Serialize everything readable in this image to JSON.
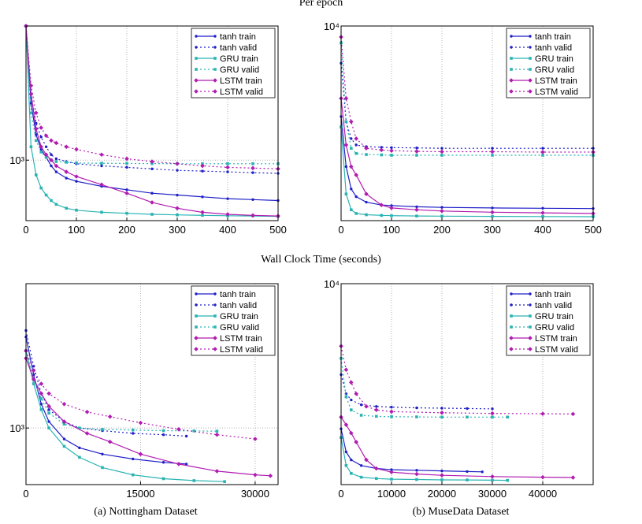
{
  "titles": {
    "per_epoch": "Per epoch",
    "wall_clock": "Wall Clock Time (seconds)",
    "caption_a": "(a) Nottingham Dataset",
    "caption_b": "(b) MuseData Dataset"
  },
  "colors": {
    "tanh": "#1f1fc8",
    "gru": "#2ab3b3",
    "lstm": "#b01cb0",
    "grid": "#b0b0b0"
  },
  "chart_data": [
    {
      "id": "nottingham-epoch",
      "type": "line",
      "title": "",
      "xlabel": "",
      "ylabel": "",
      "x_ticks": [
        0,
        100,
        200,
        300,
        400,
        500
      ],
      "x_tick_labels": [
        "0",
        "100",
        "200",
        "300",
        "400",
        "500"
      ],
      "y_scale": "log",
      "y_tick_labels": [
        "10³"
      ],
      "y_tick_values": [
        1000
      ],
      "xlim": [
        0,
        500
      ],
      "ylim": [
        650,
        2600
      ],
      "grid": true,
      "legend": "top-right",
      "series": [
        {
          "name": "tanh train",
          "family": "tanh",
          "style": "solid",
          "x": [
            0,
            10,
            20,
            30,
            40,
            50,
            60,
            80,
            100,
            150,
            200,
            250,
            300,
            350,
            400,
            450,
            500
          ],
          "y": [
            2600,
            1500,
            1200,
            1080,
            1020,
            960,
            920,
            880,
            860,
            830,
            810,
            790,
            780,
            770,
            760,
            755,
            750
          ]
        },
        {
          "name": "tanh valid",
          "family": "tanh",
          "style": "dotted",
          "x": [
            0,
            10,
            20,
            30,
            40,
            50,
            60,
            80,
            100,
            150,
            200,
            250,
            300,
            350,
            400,
            450,
            500
          ],
          "y": [
            2600,
            1600,
            1300,
            1180,
            1100,
            1040,
            1010,
            990,
            975,
            960,
            950,
            940,
            930,
            925,
            920,
            915,
            910
          ]
        },
        {
          "name": "GRU train",
          "family": "gru",
          "style": "solid",
          "x": [
            0,
            10,
            20,
            30,
            40,
            50,
            60,
            80,
            100,
            150,
            200,
            250,
            300,
            350,
            400,
            450,
            500
          ],
          "y": [
            2600,
            1100,
            900,
            820,
            780,
            750,
            730,
            710,
            700,
            690,
            685,
            680,
            677,
            675,
            673,
            672,
            670
          ]
        },
        {
          "name": "GRU valid",
          "family": "gru",
          "style": "dotted",
          "x": [
            0,
            10,
            20,
            30,
            40,
            50,
            60,
            80,
            100,
            150,
            200,
            250,
            300,
            350,
            400,
            450,
            500
          ],
          "y": [
            2600,
            1400,
            1150,
            1060,
            1020,
            1000,
            990,
            985,
            980,
            978,
            977,
            976,
            975,
            975,
            975,
            975,
            975
          ]
        },
        {
          "name": "LSTM train",
          "family": "lstm",
          "style": "solid",
          "x": [
            0,
            10,
            20,
            30,
            40,
            50,
            60,
            80,
            100,
            150,
            200,
            250,
            300,
            350,
            400,
            450,
            500
          ],
          "y": [
            2600,
            1600,
            1250,
            1100,
            1040,
            1000,
            960,
            920,
            890,
            840,
            790,
            740,
            710,
            690,
            680,
            675,
            672
          ]
        },
        {
          "name": "LSTM valid",
          "family": "lstm",
          "style": "dotted",
          "x": [
            0,
            10,
            20,
            30,
            40,
            50,
            60,
            80,
            100,
            150,
            200,
            250,
            300,
            350,
            400,
            450,
            500
          ],
          "y": [
            2600,
            1700,
            1400,
            1260,
            1190,
            1150,
            1130,
            1100,
            1080,
            1040,
            1010,
            990,
            975,
            960,
            950,
            945,
            940
          ]
        }
      ]
    },
    {
      "id": "musedata-epoch",
      "type": "line",
      "title": "",
      "xlabel": "",
      "ylabel": "",
      "x_ticks": [
        0,
        100,
        200,
        300,
        400,
        500
      ],
      "x_tick_labels": [
        "0",
        "100",
        "200",
        "300",
        "400",
        "500"
      ],
      "y_scale": "log",
      "y_tick_labels": [
        "10⁴"
      ],
      "y_tick_values": [
        10000
      ],
      "xlim": [
        0,
        500
      ],
      "ylim": [
        1550,
        10000
      ],
      "grid": true,
      "legend": "top-right",
      "series": [
        {
          "name": "tanh train",
          "family": "tanh",
          "style": "solid",
          "x": [
            0,
            10,
            20,
            30,
            50,
            80,
            100,
            150,
            200,
            300,
            400,
            500
          ],
          "y": [
            4200,
            2600,
            2100,
            1950,
            1850,
            1800,
            1790,
            1770,
            1760,
            1750,
            1745,
            1740
          ]
        },
        {
          "name": "tanh valid",
          "family": "tanh",
          "style": "dotted",
          "x": [
            0,
            10,
            20,
            30,
            50,
            80,
            100,
            150,
            200,
            300,
            400,
            500
          ],
          "y": [
            7000,
            4000,
            3400,
            3200,
            3150,
            3130,
            3120,
            3110,
            3100,
            3100,
            3100,
            3100
          ]
        },
        {
          "name": "GRU train",
          "family": "gru",
          "style": "solid",
          "x": [
            0,
            10,
            20,
            30,
            50,
            80,
            100,
            150,
            200,
            300,
            400,
            500
          ],
          "y": [
            3800,
            2000,
            1720,
            1660,
            1640,
            1630,
            1625,
            1620,
            1618,
            1615,
            1612,
            1610
          ]
        },
        {
          "name": "GRU valid",
          "family": "gru",
          "style": "dotted",
          "x": [
            0,
            10,
            20,
            30,
            50,
            80,
            100,
            150,
            200,
            300,
            400,
            500
          ],
          "y": [
            8500,
            4000,
            3100,
            2950,
            2920,
            2910,
            2900,
            2900,
            2900,
            2900,
            2900,
            2900
          ]
        },
        {
          "name": "LSTM train",
          "family": "lstm",
          "style": "solid",
          "x": [
            0,
            10,
            20,
            30,
            50,
            80,
            100,
            150,
            200,
            300,
            400,
            500
          ],
          "y": [
            5000,
            3200,
            2600,
            2400,
            2000,
            1800,
            1750,
            1720,
            1700,
            1680,
            1670,
            1660
          ]
        },
        {
          "name": "LSTM valid",
          "family": "lstm",
          "style": "dotted",
          "x": [
            0,
            10,
            20,
            30,
            50,
            80,
            100,
            150,
            200,
            300,
            400,
            500
          ],
          "y": [
            9000,
            5000,
            4000,
            3400,
            3100,
            3050,
            3030,
            3010,
            3000,
            3000,
            2990,
            2990
          ]
        }
      ]
    },
    {
      "id": "nottingham-wall",
      "type": "line",
      "title": "",
      "xlabel": "",
      "ylabel": "",
      "x_ticks": [
        0,
        15000,
        30000
      ],
      "x_tick_labels": [
        "0",
        "15000",
        "30000"
      ],
      "y_scale": "log",
      "y_tick_labels": [
        "10³"
      ],
      "y_tick_values": [
        1000
      ],
      "xlim": [
        0,
        33000
      ],
      "ylim": [
        650,
        3000
      ],
      "grid": true,
      "legend": "top-right",
      "series": [
        {
          "name": "tanh train",
          "family": "tanh",
          "style": "solid",
          "x": [
            0,
            1000,
            2000,
            3000,
            5000,
            7000,
            10000,
            14000,
            18000,
            21000
          ],
          "y": [
            2000,
            1500,
            1200,
            1050,
            920,
            860,
            820,
            790,
            770,
            760
          ]
        },
        {
          "name": "tanh valid",
          "family": "tanh",
          "style": "dotted",
          "x": [
            0,
            1000,
            2000,
            3000,
            5000,
            7000,
            10000,
            14000,
            18000,
            21000
          ],
          "y": [
            2100,
            1600,
            1300,
            1150,
            1050,
            1000,
            980,
            960,
            950,
            940
          ]
        },
        {
          "name": "GRU train",
          "family": "gru",
          "style": "solid",
          "x": [
            0,
            1000,
            2000,
            3000,
            5000,
            7000,
            10000,
            14000,
            18000,
            22000,
            26000
          ],
          "y": [
            1800,
            1400,
            1150,
            1000,
            870,
            800,
            740,
            700,
            680,
            670,
            665
          ]
        },
        {
          "name": "GRU valid",
          "family": "gru",
          "style": "dotted",
          "x": [
            0,
            1000,
            2000,
            3000,
            5000,
            7000,
            10000,
            14000,
            18000,
            22000,
            25000
          ],
          "y": [
            1800,
            1450,
            1250,
            1120,
            1030,
            1000,
            990,
            985,
            980,
            978,
            976
          ]
        },
        {
          "name": "LSTM train",
          "family": "lstm",
          "style": "solid",
          "x": [
            0,
            1000,
            2000,
            3000,
            5000,
            8000,
            11000,
            15000,
            20000,
            25000,
            30000,
            32000
          ],
          "y": [
            1700,
            1450,
            1300,
            1180,
            1050,
            960,
            900,
            820,
            760,
            720,
            700,
            695
          ]
        },
        {
          "name": "LSTM valid",
          "family": "lstm",
          "style": "dotted",
          "x": [
            0,
            1000,
            2000,
            3000,
            5000,
            8000,
            11000,
            15000,
            20000,
            25000,
            30000
          ],
          "y": [
            1800,
            1550,
            1400,
            1300,
            1200,
            1130,
            1090,
            1040,
            990,
            950,
            920
          ]
        }
      ]
    },
    {
      "id": "musedata-wall",
      "type": "line",
      "title": "",
      "xlabel": "",
      "ylabel": "",
      "x_ticks": [
        0,
        10000,
        20000,
        30000,
        40000
      ],
      "x_tick_labels": [
        "0",
        "10000",
        "20000",
        "30000",
        "40000"
      ],
      "y_scale": "log",
      "y_tick_labels": [
        "10⁴"
      ],
      "y_tick_values": [
        10000
      ],
      "xlim": [
        0,
        50000
      ],
      "ylim": [
        1550,
        10000
      ],
      "grid": true,
      "legend": "top-right",
      "series": [
        {
          "name": "tanh train",
          "family": "tanh",
          "style": "solid",
          "x": [
            0,
            1000,
            2000,
            4000,
            7000,
            10000,
            15000,
            20000,
            25000,
            28000
          ],
          "y": [
            2600,
            2100,
            1950,
            1850,
            1800,
            1780,
            1770,
            1760,
            1750,
            1745
          ]
        },
        {
          "name": "tanh valid",
          "family": "tanh",
          "style": "dotted",
          "x": [
            0,
            1000,
            2000,
            4000,
            7000,
            10000,
            15000,
            20000,
            25000,
            30000
          ],
          "y": [
            4300,
            3600,
            3400,
            3250,
            3200,
            3180,
            3160,
            3150,
            3140,
            3130
          ]
        },
        {
          "name": "GRU train",
          "family": "gru",
          "style": "solid",
          "x": [
            0,
            1000,
            2000,
            4000,
            7000,
            10000,
            15000,
            20000,
            25000,
            30000,
            33000
          ],
          "y": [
            2400,
            1850,
            1720,
            1660,
            1640,
            1630,
            1625,
            1620,
            1618,
            1615,
            1612
          ]
        },
        {
          "name": "GRU valid",
          "family": "gru",
          "style": "dotted",
          "x": [
            0,
            1000,
            2000,
            4000,
            7000,
            10000,
            15000,
            20000,
            25000,
            30000,
            33000
          ],
          "y": [
            5000,
            3500,
            3100,
            2950,
            2920,
            2910,
            2905,
            2900,
            2900,
            2900,
            2900
          ]
        },
        {
          "name": "LSTM train",
          "family": "lstm",
          "style": "solid",
          "x": [
            0,
            1000,
            2000,
            3000,
            5000,
            7000,
            10000,
            15000,
            20000,
            30000,
            40000,
            46000
          ],
          "y": [
            2900,
            2700,
            2500,
            2300,
            1950,
            1800,
            1740,
            1710,
            1690,
            1670,
            1660,
            1655
          ]
        },
        {
          "name": "LSTM valid",
          "family": "lstm",
          "style": "dotted",
          "x": [
            0,
            1000,
            2000,
            3000,
            5000,
            7000,
            10000,
            20000,
            30000,
            40000,
            46000
          ],
          "y": [
            5600,
            4500,
            4000,
            3600,
            3200,
            3100,
            3050,
            3020,
            3000,
            2990,
            2985
          ]
        }
      ]
    }
  ]
}
